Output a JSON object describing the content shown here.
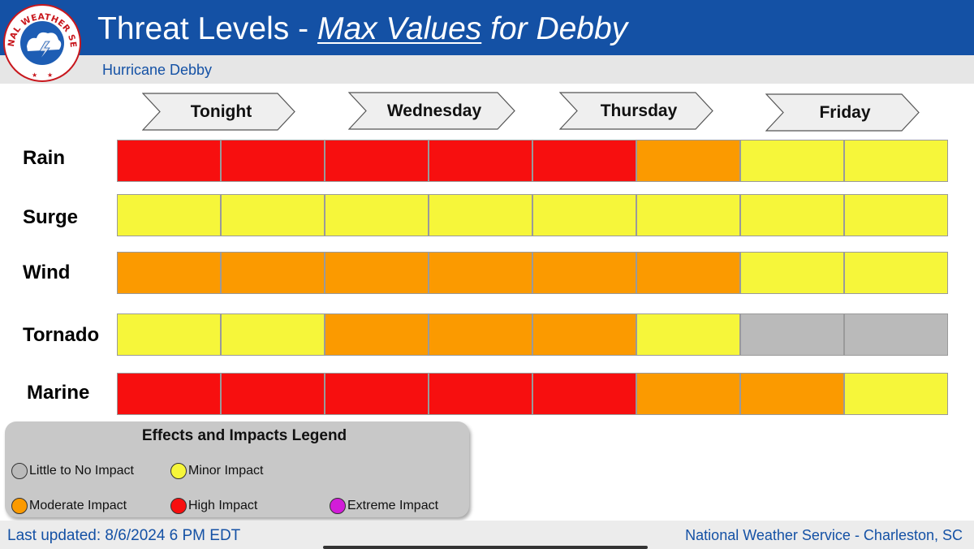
{
  "header": {
    "title_prefix": "Threat Levels - ",
    "title_underlined": "Max Values",
    "title_suffix": " for Debby",
    "subtitle": "Hurricane Debby",
    "brand_color": "#1451a5"
  },
  "logo": {
    "icon": "nws-logo-icon",
    "text": "NATIONAL WEATHER SERVICE"
  },
  "chart_data": {
    "type": "heatmap",
    "title": "Threat Levels - Max Values for Debby",
    "days": [
      "Tonight",
      "Wednesday",
      "Thursday",
      "Friday"
    ],
    "periods_per_row": 8,
    "rows": [
      {
        "label": "Rain",
        "levels": [
          "high",
          "high",
          "high",
          "high",
          "high",
          "moderate",
          "minor",
          "minor"
        ]
      },
      {
        "label": "Surge",
        "levels": [
          "minor",
          "minor",
          "minor",
          "minor",
          "minor",
          "minor",
          "minor",
          "minor"
        ]
      },
      {
        "label": "Wind",
        "levels": [
          "moderate",
          "moderate",
          "moderate",
          "moderate",
          "moderate",
          "moderate",
          "minor",
          "minor"
        ]
      },
      {
        "label": "Tornado",
        "levels": [
          "minor",
          "minor",
          "moderate",
          "moderate",
          "moderate",
          "minor",
          "none",
          "none"
        ]
      },
      {
        "label": "Marine",
        "levels": [
          "high",
          "high",
          "high",
          "high",
          "high",
          "moderate",
          "moderate",
          "minor"
        ]
      }
    ],
    "level_colors": {
      "none": "#bababa",
      "minor": "#f6f63a",
      "moderate": "#fb9a00",
      "high": "#f70f0f",
      "extreme": "#d21cd8"
    },
    "legend": {
      "title": "Effects and Impacts Legend",
      "items": [
        {
          "key": "none",
          "label": "Little to No Impact",
          "color": "#bababa"
        },
        {
          "key": "minor",
          "label": "Minor Impact",
          "color": "#f6f63a"
        },
        {
          "key": "moderate",
          "label": "Moderate Impact",
          "color": "#fb9a00"
        },
        {
          "key": "high",
          "label": "High Impact",
          "color": "#f70f0f"
        },
        {
          "key": "extreme",
          "label": "Extreme Impact",
          "color": "#d21cd8"
        }
      ]
    }
  },
  "footer": {
    "last_updated": "Last updated: 8/6/2024 6 PM EDT",
    "office": "National Weather Service - Charleston, SC"
  }
}
